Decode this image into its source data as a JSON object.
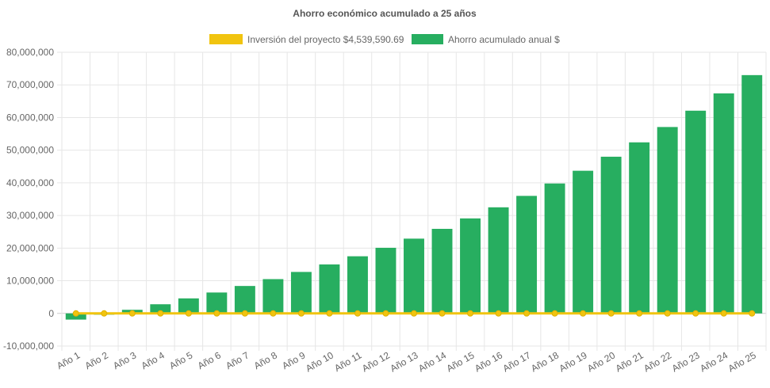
{
  "chart_data": {
    "type": "bar",
    "title": "Ahorro económico acumulado a 25 años",
    "categories": [
      "Año 1",
      "Año 2",
      "Año 3",
      "Año 4",
      "Año 5",
      "Año 6",
      "Año 7",
      "Año 8",
      "Año 9",
      "Año 10",
      "Año 11",
      "Año 12",
      "Año 13",
      "Año 14",
      "Año 15",
      "Año 16",
      "Año 17",
      "Año 18",
      "Año 19",
      "Año 20",
      "Año 21",
      "Año 22",
      "Año 23",
      "Año 24",
      "Año 25"
    ],
    "series": [
      {
        "name": "Inversión del proyecto $4,539,590.69",
        "type": "line",
        "color": "#f1c40f",
        "values": [
          0,
          0,
          0,
          0,
          0,
          0,
          0,
          0,
          0,
          0,
          0,
          0,
          0,
          0,
          0,
          0,
          0,
          0,
          0,
          0,
          0,
          0,
          0,
          0,
          0
        ]
      },
      {
        "name": "Ahorro acumulado anual $",
        "type": "bar",
        "color": "#27ae60",
        "values": [
          -1900000,
          -400000,
          1100000,
          2800000,
          4600000,
          6400000,
          8400000,
          10500000,
          12700000,
          15000000,
          17500000,
          20100000,
          22900000,
          25900000,
          29100000,
          32500000,
          36000000,
          39800000,
          43700000,
          48000000,
          52400000,
          57100000,
          62100000,
          67400000,
          73000000
        ]
      }
    ],
    "ylim": [
      -10000000,
      80000000
    ],
    "yticks": [
      "80,000,000",
      "70,000,000",
      "60,000,000",
      "50,000,000",
      "40,000,000",
      "30,000,000",
      "20,000,000",
      "10,000,000",
      "0",
      "-10,000,000"
    ],
    "grid": true,
    "legend_position": "top"
  }
}
